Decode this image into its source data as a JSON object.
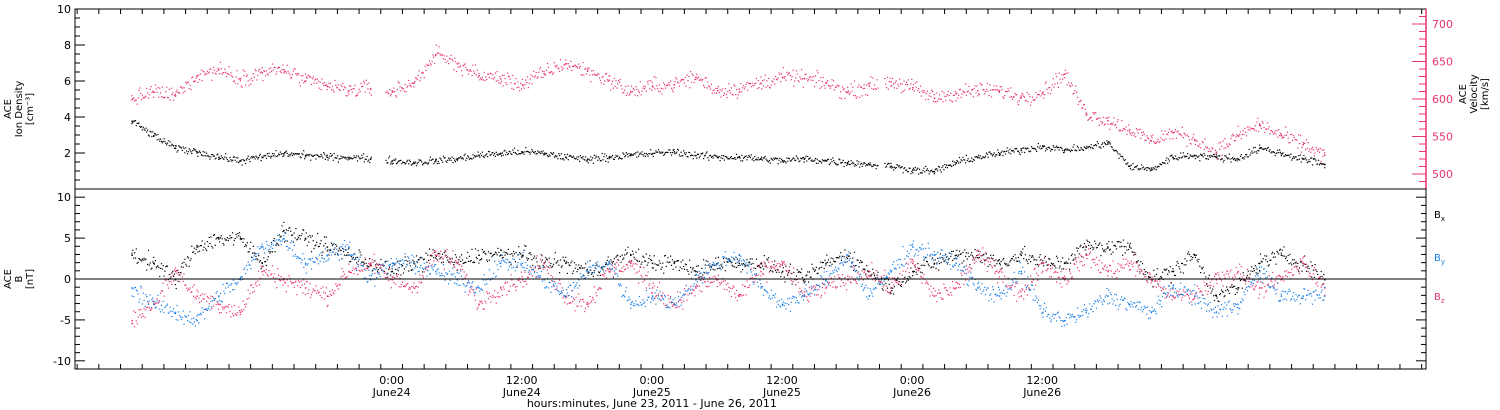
{
  "chart_data": [
    {
      "type": "scatter",
      "panel": "plasma",
      "ylabel_lines": [
        "ACE",
        "Ion Density",
        "[cm⁻³]"
      ],
      "ylim": [
        0,
        10
      ],
      "yticks": [
        2,
        4,
        6,
        8,
        10
      ],
      "y2label_lines": [
        "ACE",
        "Velocity",
        "[km/s]"
      ],
      "y2lim": [
        480,
        720
      ],
      "y2ticks": [
        500,
        550,
        600,
        650,
        700
      ],
      "series": [
        {
          "axis": "left",
          "color": "#000000",
          "x": [
            -24,
            -22,
            -20,
            -18,
            -16,
            -14,
            -12,
            -10,
            -8,
            -6,
            -4,
            -2,
            0,
            2,
            4,
            6,
            8,
            10,
            12,
            14,
            16,
            18,
            20,
            22,
            24,
            26,
            28,
            30,
            32,
            34,
            36,
            38,
            40,
            42,
            44,
            46,
            48,
            50,
            52,
            54,
            56,
            58,
            60,
            62,
            64,
            66,
            68,
            70,
            72,
            74,
            76,
            78,
            80,
            82,
            84,
            86
          ],
          "y": [
            3.8,
            3.0,
            2.3,
            2.1,
            1.8,
            1.6,
            1.8,
            2.0,
            1.9,
            1.8,
            1.8,
            1.7,
            1.6,
            1.5,
            1.6,
            1.7,
            1.9,
            2.0,
            2.1,
            2.0,
            1.8,
            1.7,
            1.8,
            1.9,
            2.0,
            2.1,
            1.9,
            1.8,
            1.8,
            1.7,
            1.6,
            1.7,
            1.6,
            1.5,
            1.4,
            1.3,
            1.1,
            1.0,
            1.5,
            1.8,
            2.0,
            2.2,
            2.4,
            2.2,
            2.3,
            2.6,
            1.3,
            1.1,
            1.8,
            1.9,
            1.8,
            1.7,
            2.3,
            2.0,
            1.7,
            1.4
          ]
        },
        {
          "axis": "right",
          "color": "#e8356a",
          "x": [
            -24,
            -22,
            -20,
            -18,
            -16,
            -14,
            -12,
            -10,
            -8,
            -6,
            -4,
            -2,
            0,
            2,
            4,
            6,
            8,
            10,
            12,
            14,
            16,
            18,
            20,
            22,
            24,
            26,
            28,
            30,
            32,
            34,
            36,
            38,
            40,
            42,
            44,
            46,
            48,
            50,
            52,
            54,
            56,
            58,
            60,
            62,
            64,
            66,
            68,
            70,
            72,
            74,
            76,
            78,
            80,
            82,
            84,
            86
          ],
          "y": [
            600,
            610,
            605,
            632,
            640,
            628,
            636,
            640,
            625,
            618,
            612,
            615,
            610,
            622,
            660,
            648,
            632,
            628,
            620,
            635,
            648,
            638,
            626,
            610,
            618,
            620,
            630,
            612,
            614,
            622,
            630,
            628,
            622,
            610,
            618,
            624,
            616,
            602,
            608,
            612,
            612,
            603,
            610,
            634,
            582,
            572,
            560,
            545,
            556,
            546,
            530,
            552,
            566,
            552,
            540,
            526
          ]
        }
      ],
      "xaxis_side": "top"
    },
    {
      "type": "scatter",
      "panel": "magnetic-field",
      "ylabel_lines": [
        "ACE",
        "B",
        "[nT]"
      ],
      "ylim": [
        -11,
        11
      ],
      "yticks": [
        -10,
        -5,
        0,
        5,
        10
      ],
      "zero_line": true,
      "legend": [
        {
          "label": "B",
          "sub": "x",
          "color": "#000000"
        },
        {
          "label": "B",
          "sub": "y",
          "color": "#1a7fe6"
        },
        {
          "label": "B",
          "sub": "z",
          "color": "#e8356a"
        }
      ],
      "legend_position": "right",
      "series": [
        {
          "component": "Bx",
          "color": "#000000",
          "x": [
            -24,
            -22,
            -20,
            -18,
            -16,
            -14,
            -12,
            -10,
            -8,
            -6,
            -4,
            -2,
            0,
            2,
            4,
            6,
            8,
            10,
            12,
            14,
            16,
            18,
            20,
            22,
            24,
            26,
            28,
            30,
            32,
            34,
            36,
            38,
            40,
            42,
            44,
            46,
            48,
            50,
            52,
            54,
            56,
            58,
            60,
            62,
            64,
            66,
            68,
            70,
            72,
            74,
            76,
            78,
            80,
            82,
            84,
            86
          ],
          "y": [
            3,
            2,
            0,
            4,
            5,
            5,
            2,
            6,
            5,
            4,
            3,
            2,
            1,
            2,
            3,
            2,
            3,
            3,
            3,
            2,
            2,
            1,
            2,
            3,
            2,
            2,
            1,
            2,
            2,
            2,
            1,
            0,
            2,
            3,
            1,
            -1,
            1,
            2,
            3,
            3,
            2,
            3,
            2,
            2,
            4,
            4,
            4,
            0,
            1,
            3,
            -2,
            -1,
            2,
            3,
            2,
            0
          ]
        },
        {
          "component": "By",
          "color": "#1a7fe6",
          "x": [
            -24,
            -22,
            -20,
            -18,
            -16,
            -14,
            -12,
            -10,
            -8,
            -6,
            -4,
            -2,
            0,
            2,
            4,
            6,
            8,
            10,
            12,
            14,
            16,
            18,
            20,
            22,
            24,
            26,
            28,
            30,
            32,
            34,
            36,
            38,
            40,
            42,
            44,
            46,
            48,
            50,
            52,
            54,
            56,
            58,
            60,
            62,
            64,
            66,
            68,
            70,
            72,
            74,
            76,
            78,
            80,
            82,
            84,
            86
          ],
          "y": [
            -1,
            -3,
            -4,
            -5,
            -2,
            0,
            4,
            5,
            2,
            3,
            4,
            0,
            2,
            2,
            1,
            0,
            -1,
            2,
            2,
            0,
            -2,
            1,
            2,
            -3,
            -2,
            -3,
            0,
            2,
            3,
            -1,
            -3,
            -2,
            0,
            3,
            -2,
            1,
            4,
            3,
            2,
            -1,
            -2,
            1,
            -4,
            -5,
            -4,
            -2,
            -3,
            -4,
            -1,
            -2,
            -4,
            -3,
            1,
            -2,
            -2,
            -2
          ]
        },
        {
          "component": "Bz",
          "color": "#e8356a",
          "x": [
            -24,
            -22,
            -20,
            -18,
            -16,
            -14,
            -12,
            -10,
            -8,
            -6,
            -4,
            -2,
            0,
            2,
            4,
            6,
            8,
            10,
            12,
            14,
            16,
            18,
            20,
            22,
            24,
            26,
            28,
            30,
            32,
            34,
            36,
            38,
            40,
            42,
            44,
            46,
            48,
            50,
            52,
            54,
            56,
            58,
            60,
            62,
            64,
            66,
            68,
            70,
            72,
            74,
            76,
            78,
            80,
            82,
            84,
            86
          ],
          "y": [
            -5,
            -3,
            1,
            -2,
            -3,
            -4,
            1,
            0,
            -1,
            -2,
            1,
            2,
            0,
            -1,
            3,
            2,
            -3,
            -1,
            0,
            2,
            -2,
            -3,
            1,
            2,
            -1,
            -3,
            -1,
            0,
            -2,
            1,
            2,
            -2,
            -1,
            0,
            1,
            -1,
            2,
            -2,
            -1,
            3,
            1,
            -2,
            2,
            0,
            3,
            1,
            2,
            0,
            -2,
            -2,
            0,
            1,
            -1,
            0,
            2,
            -1
          ]
        }
      ]
    }
  ],
  "x_axis": {
    "range_hours": [
      -29.2,
      95.4
    ],
    "ticks": [
      {
        "x": 0,
        "time": "0:00",
        "date": "June24"
      },
      {
        "x": 12,
        "time": "12:00",
        "date": "June24"
      },
      {
        "x": 24,
        "time": "0:00",
        "date": "June25"
      },
      {
        "x": 36,
        "time": "12:00",
        "date": "June25"
      },
      {
        "x": 48,
        "time": "0:00",
        "date": "June26"
      },
      {
        "x": 60,
        "time": "12:00",
        "date": "June26"
      }
    ],
    "xlabel": "hours:minutes, June 23, 2011 - June 26, 2011"
  }
}
